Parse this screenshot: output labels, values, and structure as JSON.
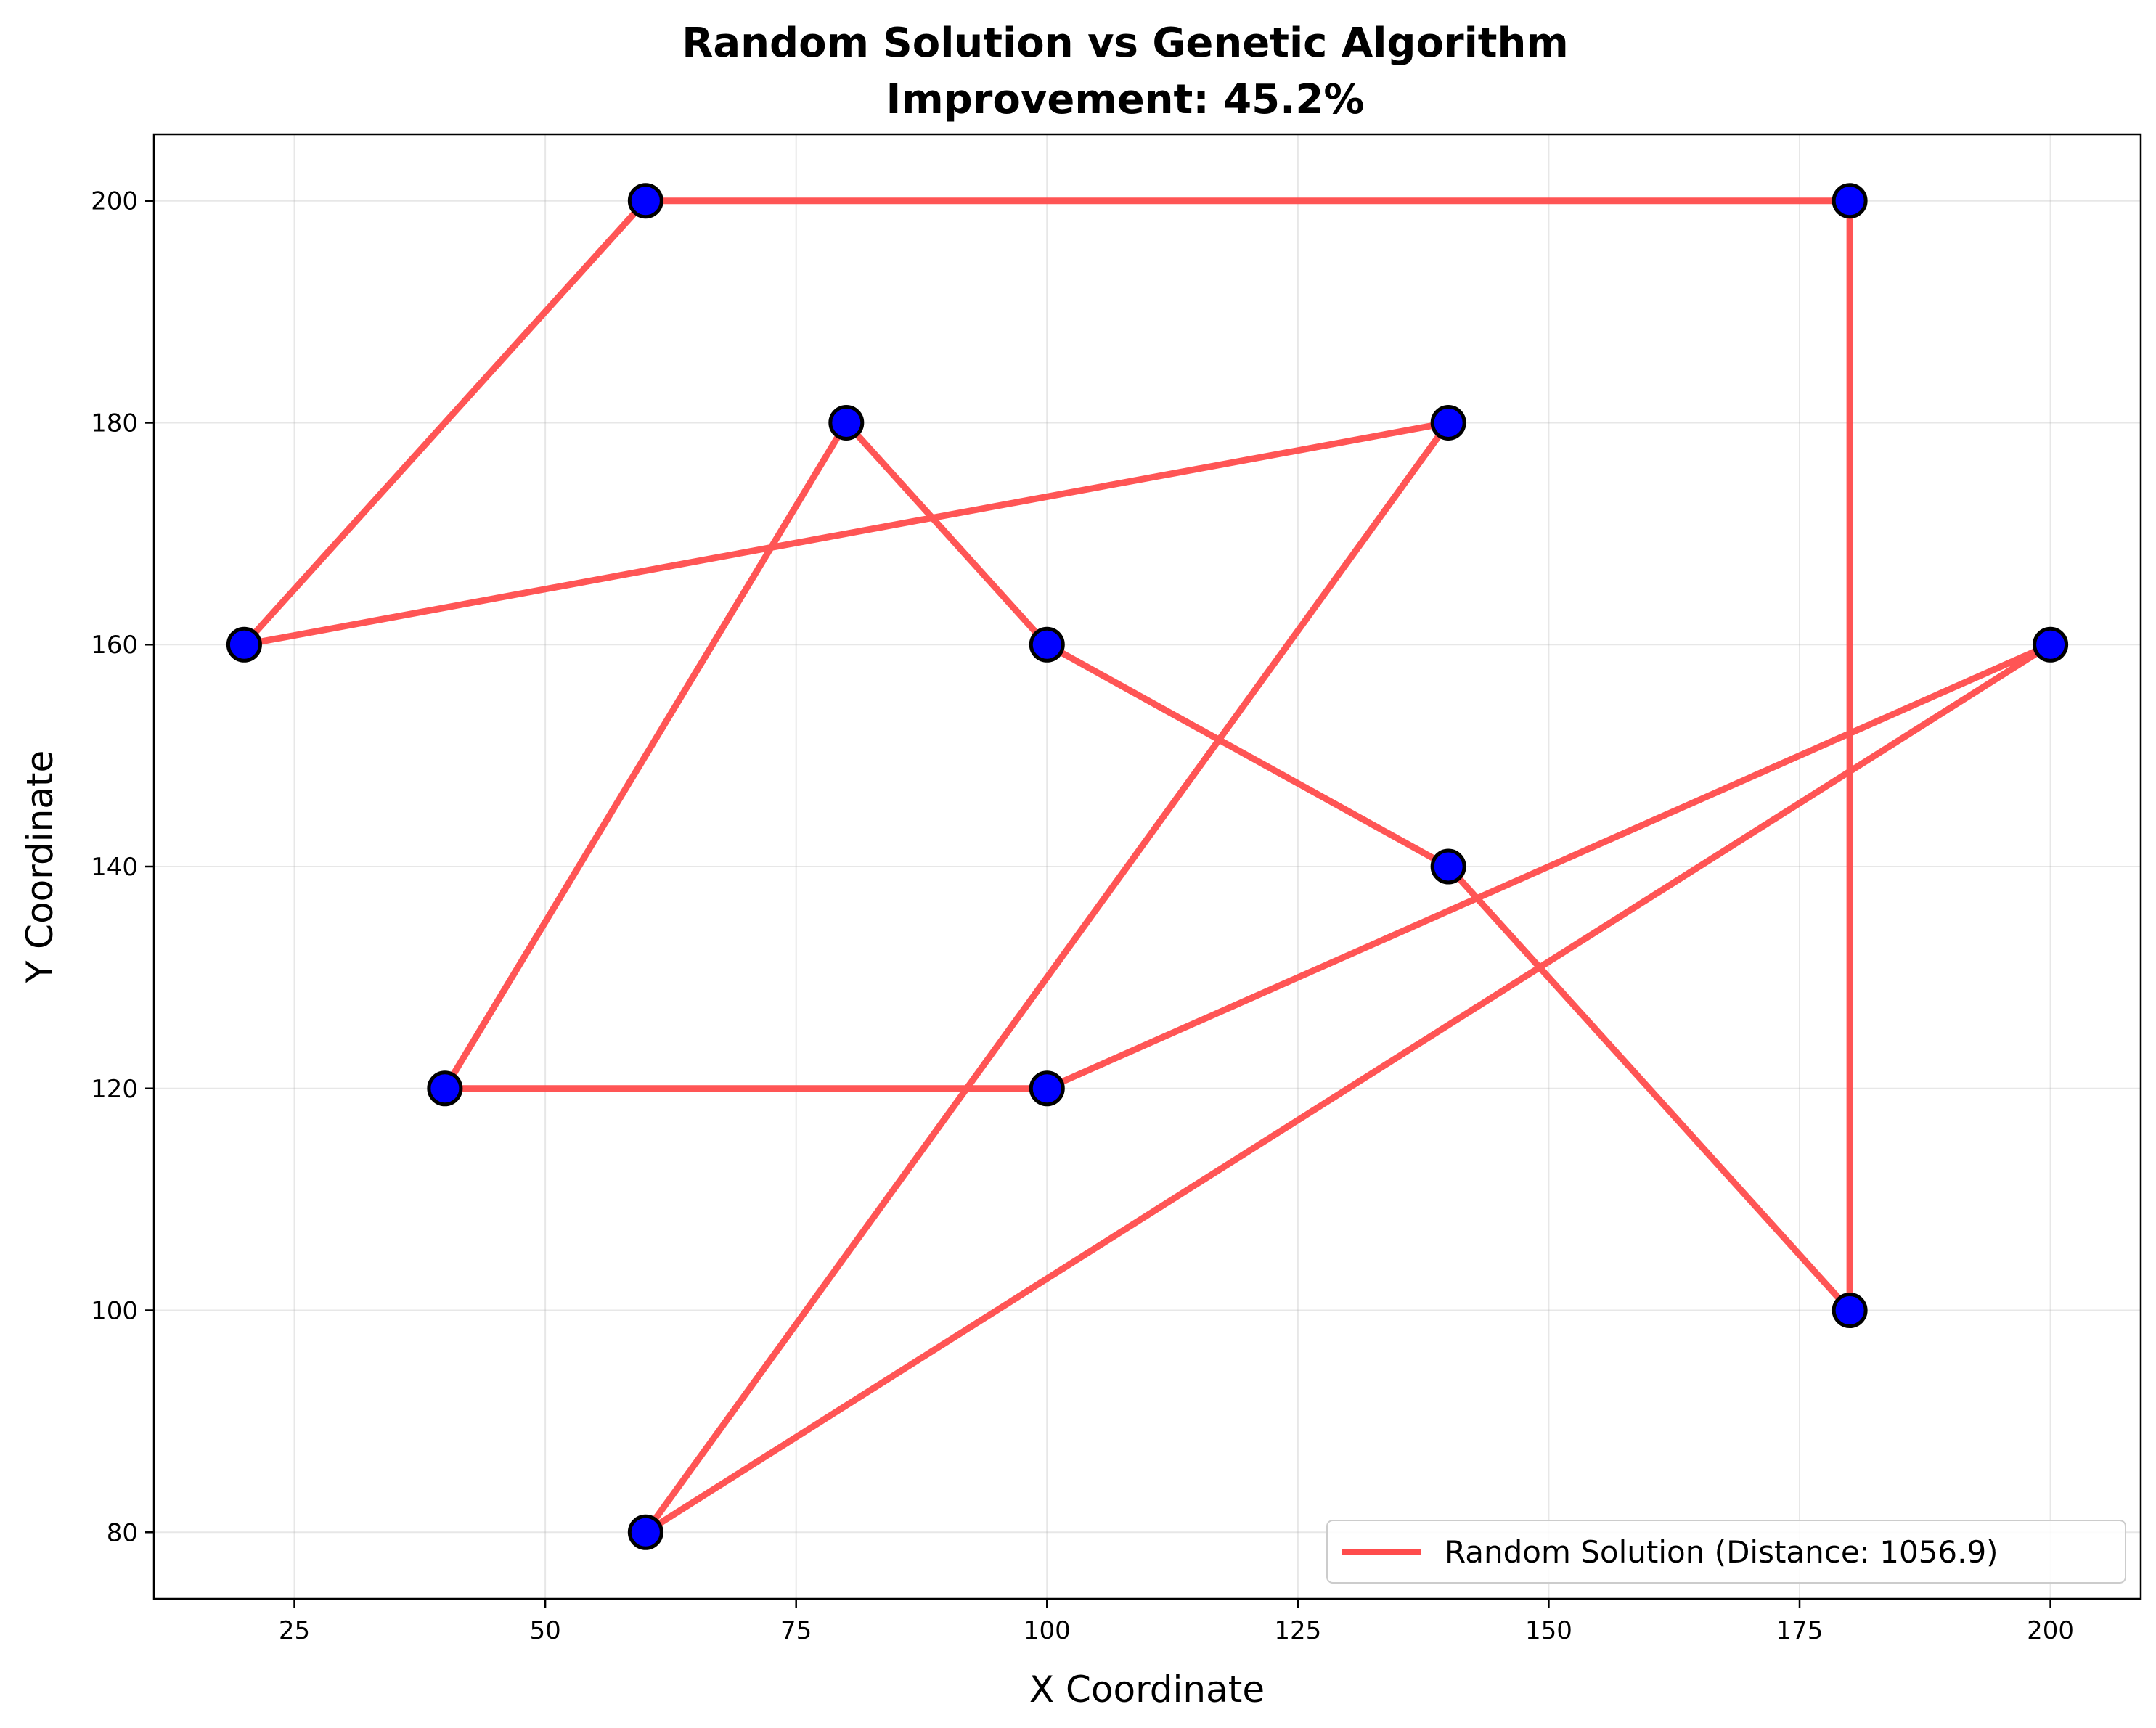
{
  "chart_data": {
    "type": "line",
    "title": "Random Solution vs Genetic Algorithm",
    "subtitle": "Improvement: 45.2%",
    "xlabel": "X Coordinate",
    "ylabel": "Y Coordinate",
    "xlim": [
      11.0,
      209.0
    ],
    "ylim": [
      74.0,
      206.0
    ],
    "x_ticks": [
      25,
      50,
      75,
      100,
      125,
      150,
      175,
      200
    ],
    "y_ticks": [
      80,
      100,
      120,
      140,
      160,
      180,
      200
    ],
    "grid": true,
    "legend_position": "lower-right",
    "series": [
      {
        "name": "Random Solution (Distance: 1056.9)",
        "color": "#ff4c4c",
        "points": [
          {
            "x": 180,
            "y": 200
          },
          {
            "x": 60,
            "y": 200
          },
          {
            "x": 20,
            "y": 160
          },
          {
            "x": 140,
            "y": 180
          },
          {
            "x": 60,
            "y": 80
          },
          {
            "x": 200,
            "y": 160
          },
          {
            "x": 100,
            "y": 120
          },
          {
            "x": 40,
            "y": 120
          },
          {
            "x": 80,
            "y": 180
          },
          {
            "x": 100,
            "y": 160
          },
          {
            "x": 140,
            "y": 140
          },
          {
            "x": 180,
            "y": 100
          },
          {
            "x": 180,
            "y": 200
          }
        ]
      }
    ],
    "cities": [
      {
        "x": 60,
        "y": 200
      },
      {
        "x": 180,
        "y": 200
      },
      {
        "x": 80,
        "y": 180
      },
      {
        "x": 140,
        "y": 180
      },
      {
        "x": 20,
        "y": 160
      },
      {
        "x": 100,
        "y": 160
      },
      {
        "x": 200,
        "y": 160
      },
      {
        "x": 140,
        "y": 140
      },
      {
        "x": 40,
        "y": 120
      },
      {
        "x": 100,
        "y": 120
      },
      {
        "x": 180,
        "y": 100
      },
      {
        "x": 60,
        "y": 80
      }
    ],
    "city_color": "#0000ff",
    "city_edge_color": "#000000"
  }
}
